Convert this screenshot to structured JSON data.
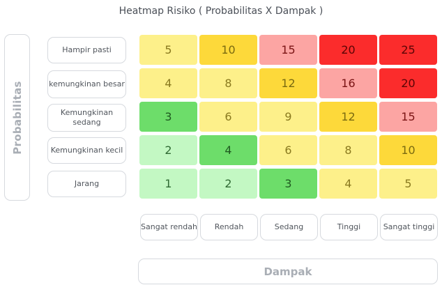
{
  "title": "Heatmap Risiko ( Probabilitas X Dampak )",
  "y_axis_label": "Probabilitas",
  "x_axis_label": "Dampak",
  "rows": [
    "Hampir pasti",
    "kemungkinan besar",
    "Kemungkinan sedang",
    "Kemungkinan kecil",
    "Jarang"
  ],
  "columns": [
    "Sangat rendah",
    "Rendah",
    "Sedang",
    "Tinggi",
    "Sangat tinggi"
  ],
  "matrix": [
    [
      5,
      10,
      15,
      20,
      25
    ],
    [
      4,
      8,
      12,
      16,
      20
    ],
    [
      3,
      6,
      9,
      12,
      15
    ],
    [
      2,
      4,
      6,
      8,
      10
    ],
    [
      1,
      2,
      3,
      4,
      5
    ]
  ],
  "cell_colors": [
    [
      "#fdf08a",
      "#fdd93a",
      "#fca5a3",
      "#fb2c2c",
      "#fb2c2c"
    ],
    [
      "#fdf08a",
      "#fdf08a",
      "#fdd93a",
      "#fca5a3",
      "#fb2c2c"
    ],
    [
      "#6ddd6a",
      "#fdf08a",
      "#fdf08a",
      "#fdd93a",
      "#fca5a3"
    ],
    [
      "#c3f8c3",
      "#6ddd6a",
      "#fdf08a",
      "#fdf08a",
      "#fdd93a"
    ],
    [
      "#c3f8c3",
      "#c3f8c3",
      "#6ddd6a",
      "#fdf08a",
      "#fdf08a"
    ]
  ],
  "text_colors": {
    "#fdf08a": "#8a7a1f",
    "#fdd93a": "#7a6a10",
    "#fca5a3": "#7a1414",
    "#fb2c2c": "#5a0505",
    "#6ddd6a": "#1f5a20",
    "#c3f8c3": "#2f6a33"
  }
}
